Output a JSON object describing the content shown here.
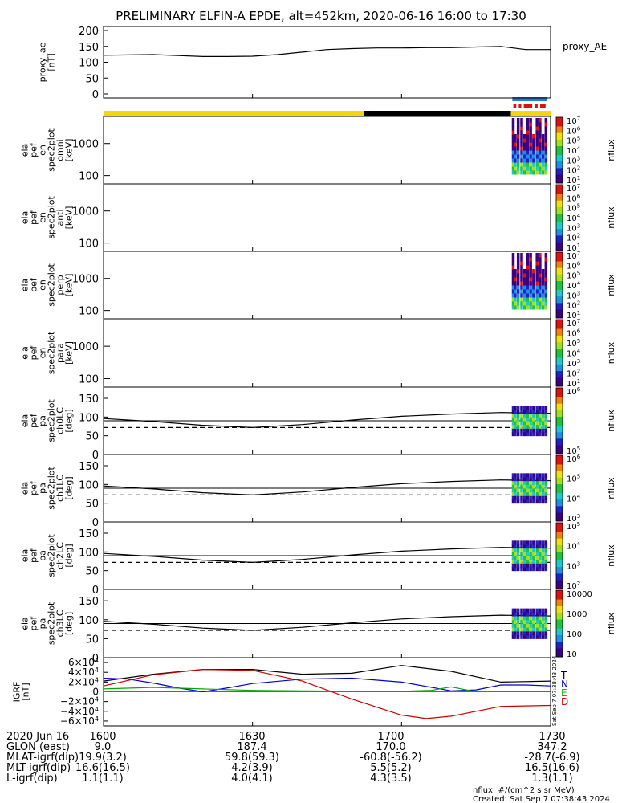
{
  "title": "PRELIMINARY ELFIN-A EPDE, alt=452km, 2020-06-16 16:00 to 17:30",
  "colors": {
    "day_bar": "#f5d60a",
    "night_bar": "#000000",
    "fast_bar": "#1e7be0",
    "sci_bar": "#e01010",
    "ae_line": "#000000",
    "grf_t": "#000000",
    "grf_n": "#0000cc",
    "grf_e": "#00aa00",
    "grf_d": "#cc0000"
  },
  "status_bars": {
    "day_night": [
      {
        "state": "day",
        "start_min": 0,
        "end_min": 52.5
      },
      {
        "state": "night",
        "start_min": 52.5,
        "end_min": 82
      },
      {
        "state": "day",
        "start_min": 82,
        "end_min": 90
      }
    ],
    "fast_mode": {
      "start_min": 82.3,
      "end_min": 89.2
    },
    "science_segments": [
      [
        82.5,
        83.1
      ],
      [
        83.6,
        84.1
      ],
      [
        84.6,
        86.3
      ],
      [
        86.8,
        87.4
      ],
      [
        87.9,
        89.0
      ]
    ]
  },
  "colorbars": [
    {
      "ticks": [
        "10^1",
        "10^2",
        "10^3",
        "10^4",
        "10^5",
        "10^6",
        "10^7"
      ],
      "label": "nflux"
    },
    {
      "ticks": [
        "10^1",
        "10^2",
        "10^3",
        "10^4",
        "10^5",
        "10^6",
        "10^7"
      ],
      "label": "nflux"
    },
    {
      "ticks": [
        "10^1",
        "10^2",
        "10^3",
        "10^4",
        "10^5",
        "10^6",
        "10^7"
      ],
      "label": "nflux"
    },
    {
      "ticks": [
        "10^1",
        "10^2",
        "10^3",
        "10^4",
        "10^5",
        "10^6",
        "10^7"
      ],
      "label": "nflux"
    },
    {
      "ticks": [
        "10^5",
        "10^6"
      ],
      "label": "nflux"
    },
    {
      "ticks": [
        "10^3",
        "10^4",
        "10^5",
        "10^6"
      ],
      "label": "nflux"
    },
    {
      "ticks": [
        "10^2",
        "10^3",
        "10^4",
        "10^5"
      ],
      "label": "nflux"
    },
    {
      "ticks": [
        "10",
        "100",
        "1000",
        "10000"
      ],
      "label": "nflux"
    }
  ],
  "footer": {
    "rows": [
      {
        "label": "2020 Jun 16",
        "values": [
          "1600",
          "1630",
          "1700",
          "1730"
        ]
      },
      {
        "label": "GLON (east)",
        "values": [
          "9.0",
          "187.4",
          "170.0",
          "347.2"
        ]
      },
      {
        "label": "MLAT-igrf(dip)",
        "values": [
          "19.9(3.2)",
          "59.8(59.3)",
          "-60.8(-56.2)",
          "-28.7(-6.9)"
        ]
      },
      {
        "label": "MLT-igrf(dip)",
        "values": [
          "16.6(16.5)",
          "4.2(3.9)",
          "5.5(5.2)",
          "16.5(16.6)"
        ]
      },
      {
        "label": "L-igrf(dip)",
        "values": [
          "1.1(1.1)",
          "4.0(4.1)",
          "4.3(3.5)",
          "1.3(1.1)"
        ]
      }
    ],
    "units_note": "nflux: #/(cm^2 s sr MeV)",
    "created": "Created: Sat Sep  7 07:38:43 2024",
    "side_stamp": "Sat Sep  7 07:38:43 2024"
  },
  "chart_data": [
    {
      "type": "line",
      "id": "proxy_ae",
      "ylabel": [
        "proxy_ae",
        "[nT]"
      ],
      "legend": "proxy_AE",
      "ylim": [
        0,
        200
      ],
      "yticks": [
        0,
        50,
        100,
        150,
        200
      ],
      "xlim_min": [
        0,
        90
      ],
      "series": [
        {
          "name": "proxy_AE",
          "x": [
            0,
            5,
            10,
            15,
            20,
            25,
            30,
            35,
            40,
            45,
            50,
            55,
            60,
            65,
            70,
            75,
            80,
            85,
            90
          ],
          "values": [
            122,
            123,
            124,
            121,
            118,
            118,
            119,
            124,
            132,
            140,
            143,
            145,
            145,
            146,
            146,
            148,
            150,
            140,
            140
          ]
        }
      ]
    },
    {
      "type": "heatmap",
      "id": "en_spec2plot_omni",
      "ylabel": [
        "ela",
        "pef",
        "en",
        "spec2plot",
        "omni",
        "[keV]"
      ],
      "yscale": "log",
      "ylim_kev": [
        55,
        7000
      ],
      "yticks": [
        "100",
        "1000"
      ],
      "xlim_min": [
        0,
        90
      ],
      "spin_columns_min": [
        82.2,
        82.6,
        83.2,
        83.9,
        84.5,
        85.1,
        85.7,
        86.3,
        87.0,
        87.6,
        88.2,
        88.8
      ]
    },
    {
      "type": "heatmap",
      "id": "en_spec2plot_anti",
      "ylabel": [
        "ela",
        "pef",
        "en",
        "spec2plot",
        "anti",
        "[keV]"
      ],
      "yscale": "log",
      "ylim_kev": [
        55,
        7000
      ],
      "yticks": [
        "100",
        "1000"
      ],
      "xlim_min": [
        0,
        90
      ],
      "spin_columns_min": []
    },
    {
      "type": "heatmap",
      "id": "en_spec2plot_perp",
      "ylabel": [
        "ela",
        "pef",
        "en",
        "spec2plot",
        "perp",
        "[keV]"
      ],
      "yscale": "log",
      "ylim_kev": [
        55,
        7000
      ],
      "yticks": [
        "100",
        "1000"
      ],
      "xlim_min": [
        0,
        90
      ],
      "spin_columns_min": [
        82.2,
        82.6,
        83.2,
        83.9,
        84.5,
        85.1,
        85.7,
        86.3,
        87.0,
        87.6,
        88.2,
        88.8
      ]
    },
    {
      "type": "heatmap",
      "id": "en_spec2plot_para",
      "ylabel": [
        "ela",
        "pef",
        "en",
        "spec2plot",
        "para",
        "[keV]"
      ],
      "yscale": "log",
      "ylim_kev": [
        55,
        7000
      ],
      "yticks": [
        "100",
        "1000"
      ],
      "xlim_min": [
        0,
        90
      ],
      "spin_columns_min": []
    },
    {
      "type": "heatmap",
      "id": "pa_spec2plot_ch0LC",
      "ylabel": [
        "ela",
        "pef",
        "pa",
        "spec2plot",
        "ch0LC",
        "[deg]"
      ],
      "ylim": [
        0,
        180
      ],
      "yticks": [
        0,
        50,
        100,
        150
      ],
      "xlim_min": [
        0,
        90
      ],
      "ninety_deg_line": 90,
      "lc_curve": {
        "x": [
          0,
          10,
          20,
          30,
          40,
          50,
          60,
          70,
          80,
          90
        ],
        "values": [
          96,
          88,
          78,
          72,
          80,
          92,
          102,
          108,
          112,
          110
        ]
      },
      "antilc_curve": {
        "x": [
          0,
          10,
          20,
          30,
          40,
          50,
          60,
          70,
          80,
          90
        ],
        "values": [
          72,
          72,
          72,
          72,
          72,
          72,
          72,
          72,
          72,
          72
        ]
      },
      "spin_columns_min": [
        82.2,
        82.6,
        83.2,
        83.9,
        84.5,
        85.1,
        85.7,
        86.3,
        87.0,
        87.6,
        88.2,
        88.8
      ]
    },
    {
      "type": "heatmap",
      "id": "pa_spec2plot_ch1LC",
      "ylabel": [
        "ela",
        "pef",
        "pa",
        "spec2plot",
        "ch1LC",
        "[deg]"
      ],
      "ylim": [
        0,
        180
      ],
      "yticks": [
        0,
        50,
        100,
        150
      ],
      "xlim_min": [
        0,
        90
      ],
      "ninety_deg_line": 90,
      "lc_curve": {
        "x": [
          0,
          10,
          20,
          30,
          40,
          50,
          60,
          70,
          80,
          90
        ],
        "values": [
          96,
          88,
          78,
          72,
          80,
          92,
          102,
          108,
          112,
          110
        ]
      },
      "antilc_curve": {
        "x": [
          0,
          10,
          20,
          30,
          40,
          50,
          60,
          70,
          80,
          90
        ],
        "values": [
          72,
          72,
          72,
          72,
          72,
          72,
          72,
          72,
          72,
          72
        ]
      },
      "spin_columns_min": [
        82.2,
        82.6,
        83.2,
        83.9,
        84.5,
        85.1,
        85.7,
        86.3,
        87.0,
        87.6,
        88.2,
        88.8
      ]
    },
    {
      "type": "heatmap",
      "id": "pa_spec2plot_ch2LC",
      "ylabel": [
        "ela",
        "pef",
        "pa",
        "spec2plot",
        "ch2LC",
        "[deg]"
      ],
      "ylim": [
        0,
        180
      ],
      "yticks": [
        0,
        50,
        100,
        150
      ],
      "xlim_min": [
        0,
        90
      ],
      "ninety_deg_line": 90,
      "lc_curve": {
        "x": [
          0,
          10,
          20,
          30,
          40,
          50,
          60,
          70,
          80,
          90
        ],
        "values": [
          96,
          88,
          78,
          72,
          80,
          92,
          102,
          108,
          112,
          110
        ]
      },
      "antilc_curve": {
        "x": [
          0,
          10,
          20,
          30,
          40,
          50,
          60,
          70,
          80,
          90
        ],
        "values": [
          72,
          72,
          72,
          72,
          72,
          72,
          72,
          72,
          72,
          72
        ]
      },
      "spin_columns_min": [
        82.2,
        82.6,
        83.2,
        83.9,
        84.5,
        85.1,
        85.7,
        86.3,
        87.0,
        87.6,
        88.2,
        88.8
      ]
    },
    {
      "type": "heatmap",
      "id": "pa_spec2plot_ch3LC",
      "ylabel": [
        "ela",
        "pef",
        "pa",
        "spec2plot",
        "ch3LC",
        "[deg]"
      ],
      "ylim": [
        0,
        180
      ],
      "yticks": [
        0,
        50,
        100,
        150
      ],
      "xlim_min": [
        0,
        90
      ],
      "ninety_deg_line": 90,
      "lc_curve": {
        "x": [
          0,
          10,
          20,
          30,
          40,
          50,
          60,
          70,
          80,
          90
        ],
        "values": [
          96,
          88,
          78,
          72,
          80,
          92,
          102,
          108,
          112,
          110
        ]
      },
      "antilc_curve": {
        "x": [
          0,
          10,
          20,
          30,
          40,
          50,
          60,
          70,
          80,
          90
        ],
        "values": [
          72,
          72,
          72,
          72,
          72,
          72,
          72,
          72,
          72,
          72
        ]
      },
      "spin_columns_min": [
        82.2,
        82.6,
        83.2,
        83.9,
        84.5,
        85.1,
        85.7,
        86.3,
        87.0,
        87.6,
        88.2,
        88.8
      ]
    },
    {
      "type": "line",
      "id": "igrf",
      "ylabel": [
        "IGRF",
        "[nT]"
      ],
      "ylim": [
        -70000,
        70000
      ],
      "yticks": [
        "6×10^4",
        "4×10^4",
        "2×10^4",
        "0",
        "−2×10^4",
        "−4×10^4",
        "−6×10^4"
      ],
      "ytick_values": [
        60000,
        40000,
        20000,
        0,
        -20000,
        -40000,
        -60000
      ],
      "xlim_min": [
        0,
        90
      ],
      "legend": [
        "T",
        "N",
        "E",
        "D"
      ],
      "series": [
        {
          "name": "T",
          "x": [
            0,
            10,
            20,
            30,
            40,
            50,
            60,
            70,
            80,
            90
          ],
          "values": [
            22000,
            36000,
            46000,
            46000,
            36000,
            38000,
            54000,
            42000,
            20000,
            22000
          ]
        },
        {
          "name": "N",
          "x": [
            0,
            5,
            10,
            15,
            20,
            25,
            30,
            40,
            50,
            60,
            70,
            75,
            80,
            85,
            90
          ],
          "values": [
            28000,
            26000,
            18000,
            8000,
            0,
            8000,
            17000,
            26000,
            28000,
            20000,
            2000,
            4000,
            14000,
            14000,
            12000
          ]
        },
        {
          "name": "E",
          "x": [
            0,
            10,
            20,
            30,
            40,
            50,
            60,
            66,
            70,
            74,
            80,
            90
          ],
          "values": [
            6000,
            9000,
            6000,
            3000,
            2000,
            1000,
            1000,
            3000,
            10000,
            2000,
            1000,
            1000
          ]
        },
        {
          "name": "D",
          "x": [
            0,
            10,
            20,
            30,
            40,
            50,
            60,
            65,
            70,
            80,
            90
          ],
          "values": [
            12000,
            35000,
            46000,
            44000,
            22000,
            -15000,
            -48000,
            -55000,
            -50000,
            -30000,
            -28000
          ]
        }
      ]
    }
  ]
}
